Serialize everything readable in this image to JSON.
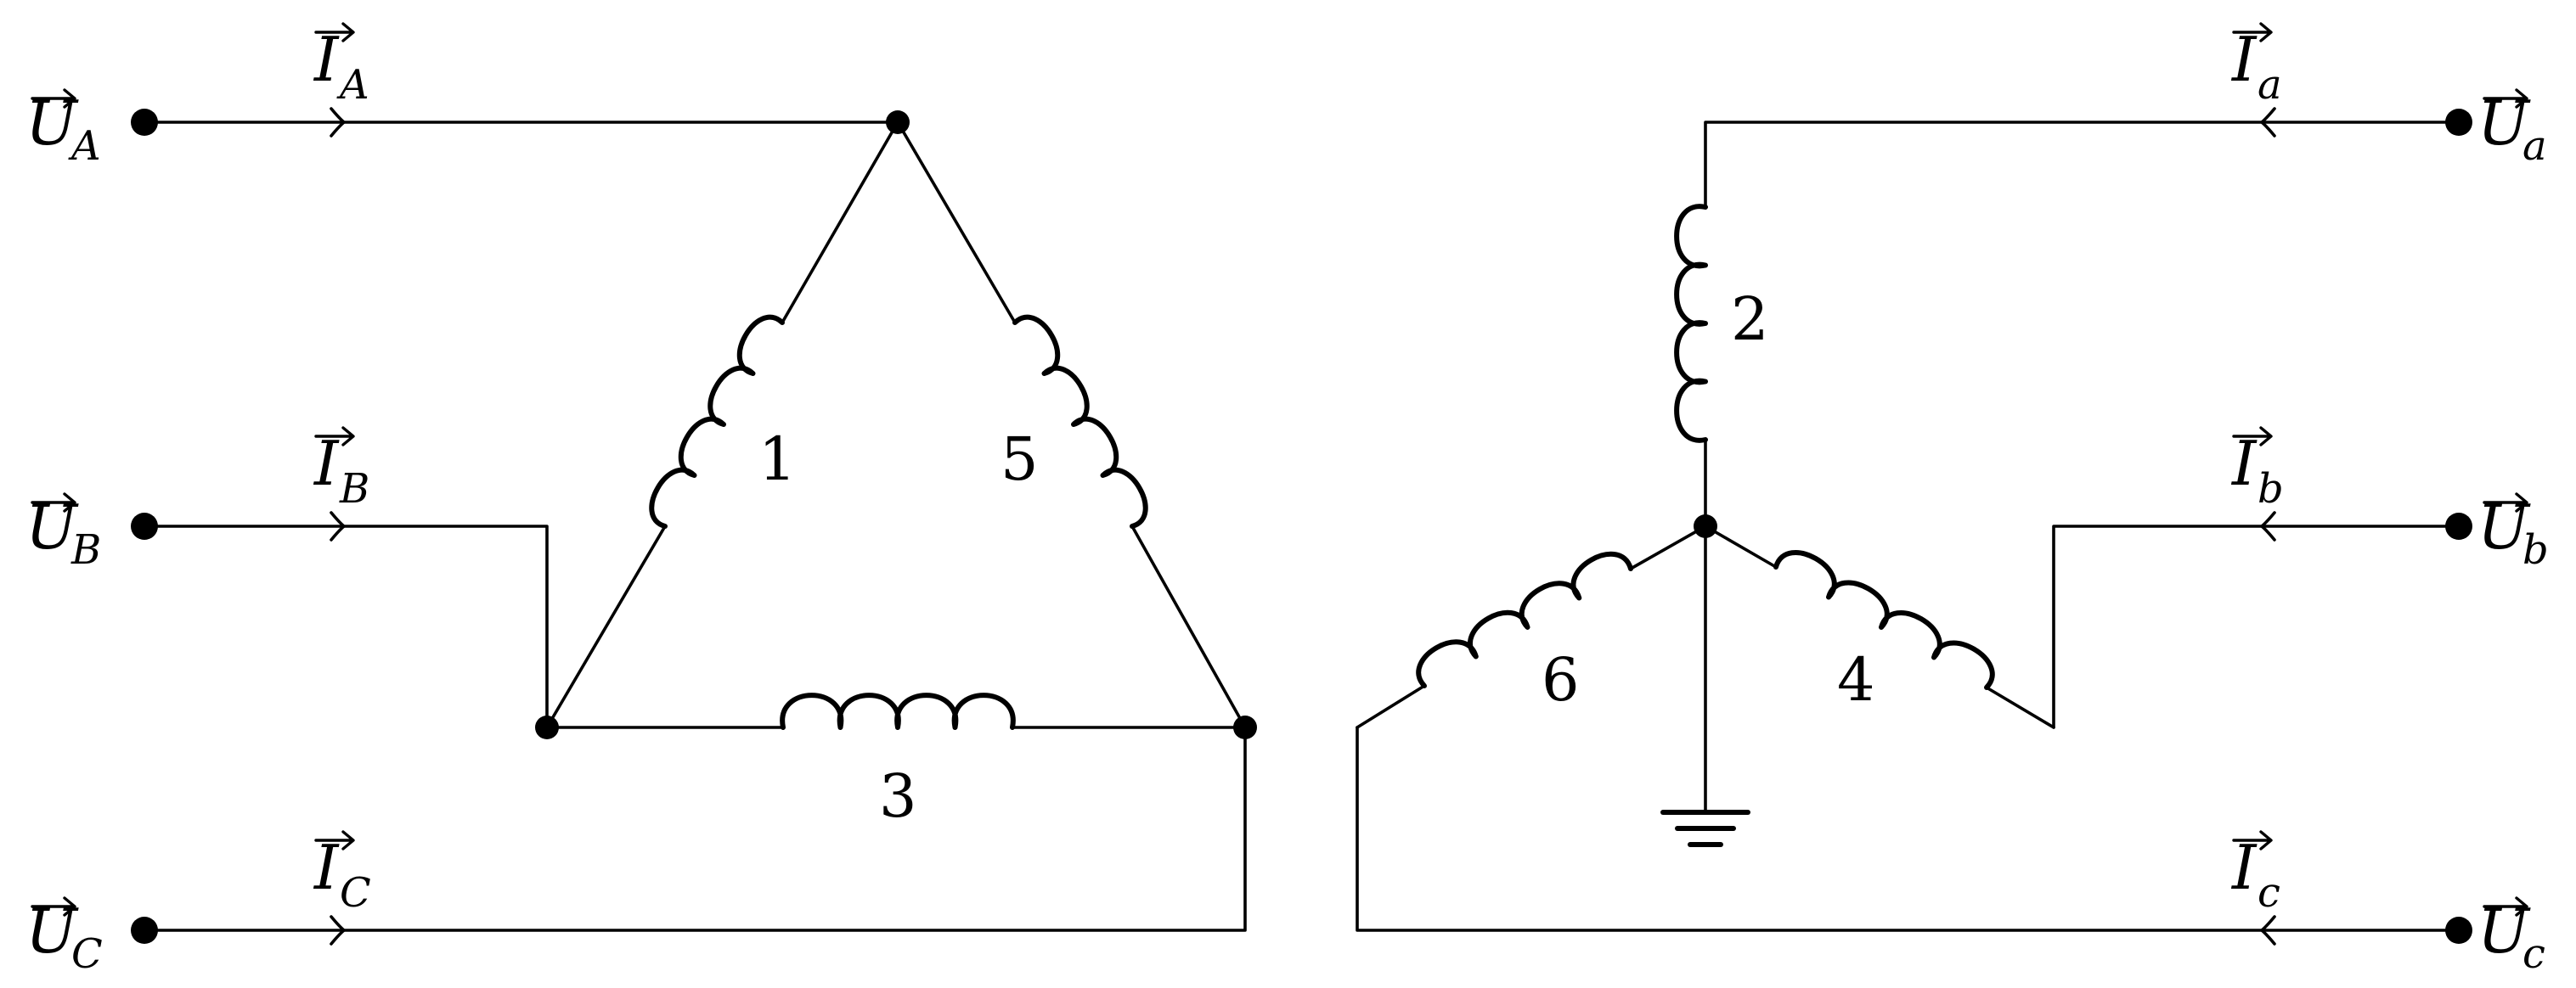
{
  "terminals": {
    "primary": [
      {
        "voltage_symbol": "U",
        "voltage_sub": "A",
        "current_symbol": "I",
        "current_sub": "A"
      },
      {
        "voltage_symbol": "U",
        "voltage_sub": "B",
        "current_symbol": "I",
        "current_sub": "B"
      },
      {
        "voltage_symbol": "U",
        "voltage_sub": "C",
        "current_symbol": "I",
        "current_sub": "C"
      }
    ],
    "secondary": [
      {
        "voltage_symbol": "U",
        "voltage_sub": "a",
        "current_symbol": "I",
        "current_sub": "a"
      },
      {
        "voltage_symbol": "U",
        "voltage_sub": "b",
        "current_symbol": "I",
        "current_sub": "b"
      },
      {
        "voltage_symbol": "U",
        "voltage_sub": "c",
        "current_symbol": "I",
        "current_sub": "c"
      }
    ]
  },
  "windings": {
    "w1": "1",
    "w2": "2",
    "w3": "3",
    "w4": "4",
    "w5": "5",
    "w6": "6"
  },
  "symbols": {
    "ground": "ground-icon"
  }
}
